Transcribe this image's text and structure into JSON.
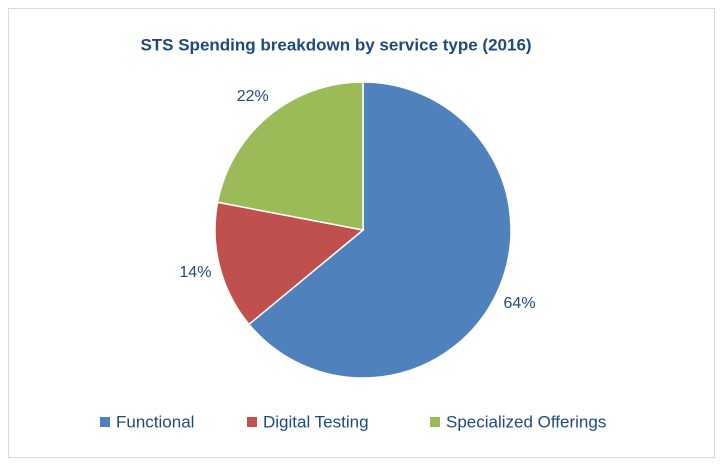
{
  "chart_data": {
    "type": "pie",
    "title": "STS Spending breakdown by service type (2016)",
    "categories": [
      "Functional",
      "Digital Testing",
      "Specialized Offerings"
    ],
    "values": [
      64,
      14,
      22
    ],
    "value_labels": [
      "64%",
      "14%",
      "22%"
    ],
    "colors": [
      "#4f81bd",
      "#c0504d",
      "#9bbb59"
    ],
    "legend": "bottom"
  }
}
